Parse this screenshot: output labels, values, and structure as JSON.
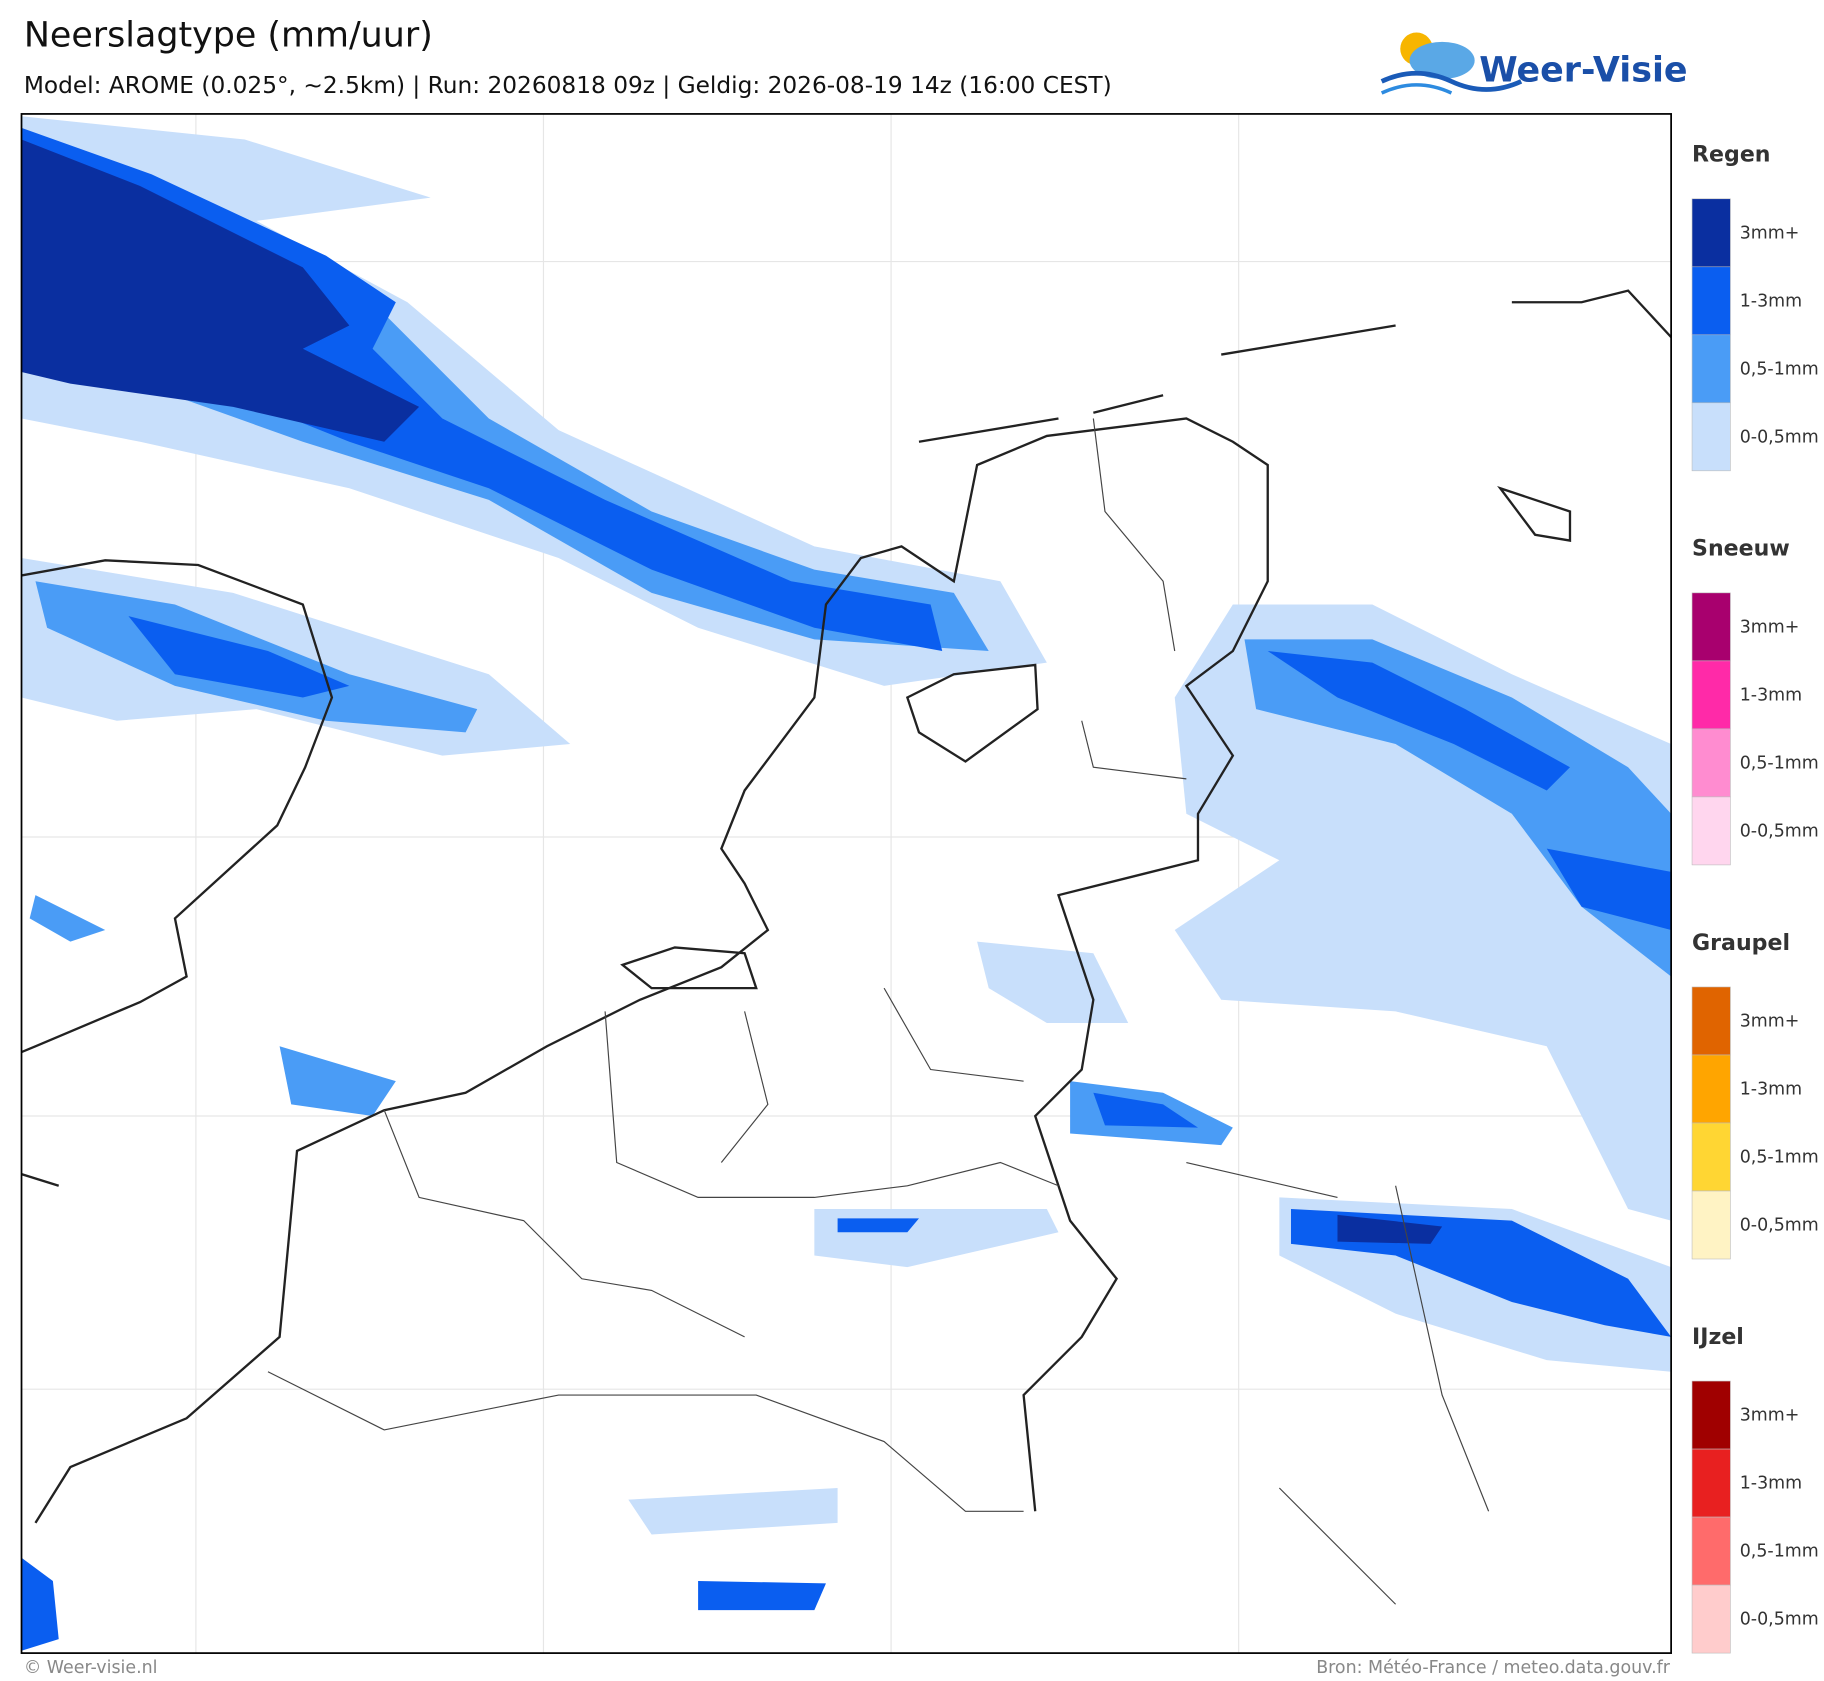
{
  "header": {
    "title": "Neerslagtype (mm/uur)",
    "subtitle": "Model: AROME (0.025°, ~2.5km)  |  Run: 20260818 09z  |  Geldig: 2026-08-19 14z (16:00 CEST)"
  },
  "logo": {
    "text": "Weer-Visie"
  },
  "legend": [
    {
      "title": "Regen",
      "items": [
        {
          "label": "3mm+",
          "color": "#0a2fa0"
        },
        {
          "label": "1-3mm",
          "color": "#0a5ef0"
        },
        {
          "label": "0,5-1mm",
          "color": "#4a9cf6"
        },
        {
          "label": "0-0,5mm",
          "color": "#c8dffb"
        }
      ]
    },
    {
      "title": "Sneeuw",
      "items": [
        {
          "label": "3mm+",
          "color": "#a8006e"
        },
        {
          "label": "1-3mm",
          "color": "#ff2aa8"
        },
        {
          "label": "0,5-1mm",
          "color": "#ff8cd0"
        },
        {
          "label": "0-0,5mm",
          "color": "#ffd6ee"
        }
      ]
    },
    {
      "title": "Graupel",
      "items": [
        {
          "label": "3mm+",
          "color": "#e06400"
        },
        {
          "label": "1-3mm",
          "color": "#ffa500"
        },
        {
          "label": "0,5-1mm",
          "color": "#ffd633"
        },
        {
          "label": "0-0,5mm",
          "color": "#fff3c4"
        }
      ]
    },
    {
      "title": "IJzel",
      "items": [
        {
          "label": "3mm+",
          "color": "#a00000"
        },
        {
          "label": "1-3mm",
          "color": "#e82020"
        },
        {
          "label": "0,5-1mm",
          "color": "#ff6b6b"
        },
        {
          "label": "0-0,5mm",
          "color": "#ffcccc"
        }
      ]
    }
  ],
  "footer": {
    "left": "© Weer-visie.nl",
    "right": "Bron: Météo-France / meteo.data.gouv.fr"
  }
}
